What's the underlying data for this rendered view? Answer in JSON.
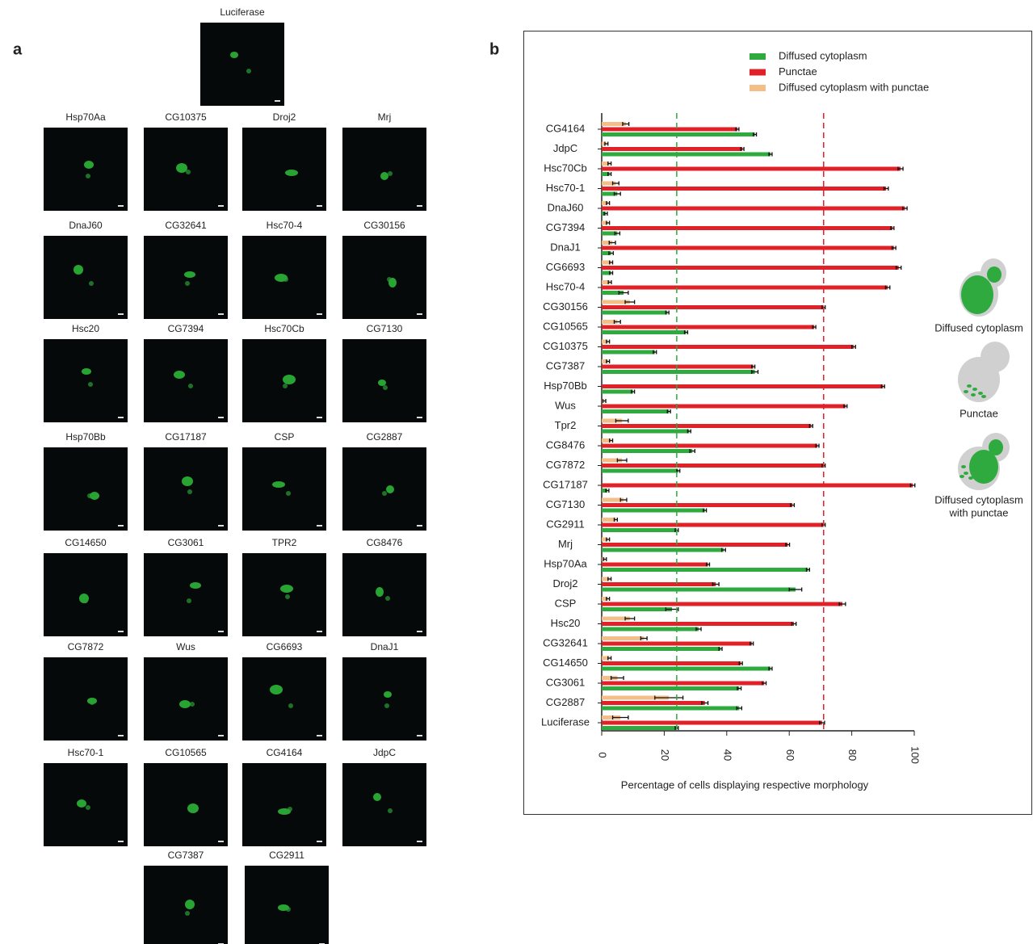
{
  "panel_a": {
    "label": "a",
    "images": [
      "Luciferase",
      "Hsp70Aa",
      "CG10375",
      "Droj2",
      "Mrj",
      "DnaJ60",
      "CG32641",
      "Hsc70-4",
      "CG30156",
      "Hsc20",
      "CG7394",
      "Hsc70Cb",
      "CG7130",
      "Hsp70Bb",
      "CG17187",
      "CSP",
      "CG2887",
      "CG14650",
      "CG3061",
      "TPR2",
      "CG8476",
      "CG7872",
      "Wus",
      "CG6693",
      "DnaJ1",
      "Hsc70-1",
      "CG10565",
      "CG4164",
      "JdpC",
      "CG7387",
      "CG2911"
    ]
  },
  "chart_data": {
    "type": "bar",
    "orientation": "horizontal",
    "label": "b",
    "categories": [
      "CG4164",
      "JdpC",
      "Hsc70Cb",
      "Hsc70-1",
      "DnaJ60",
      "CG7394",
      "DnaJ1",
      "CG6693",
      "Hsc70-4",
      "CG30156",
      "CG10565",
      "CG10375",
      "CG7387",
      "Hsp70Bb",
      "Wus",
      "Tpr2",
      "CG8476",
      "CG7872",
      "CG17187",
      "CG7130",
      "CG2911",
      "Mrj",
      "Hsp70Aa",
      "Droj2",
      "CSP",
      "Hsc20",
      "CG32641",
      "CG14650",
      "CG3061",
      "CG2887",
      "Luciferase"
    ],
    "series": [
      {
        "name": "Diffused cytoplasm with punctae",
        "color": "#f4be88",
        "values": [
          7.7,
          1.5,
          2.5,
          4.5,
          2,
          2,
          3.4,
          3,
          2.6,
          9,
          5,
          2,
          2,
          0,
          0.8,
          6.5,
          3,
          6.5,
          0,
          7,
          4.5,
          2,
          1,
          2.5,
          2,
          9,
          13.5,
          2.5,
          5,
          21.5,
          6
        ],
        "errors": [
          1,
          0.5,
          0.5,
          1,
          0.5,
          0.5,
          1,
          0.5,
          0.5,
          1.5,
          1,
          0.5,
          0.5,
          0,
          0.5,
          2,
          0.5,
          1.5,
          0,
          1,
          0.5,
          0.5,
          0.5,
          0.5,
          0.5,
          1.5,
          1,
          0.5,
          2,
          4.5,
          2.5
        ]
      },
      {
        "name": "Punctae",
        "color": "#e02127",
        "values": [
          43.4,
          45,
          95.6,
          91,
          97,
          93,
          93.5,
          95,
          91.5,
          71,
          68,
          80.6,
          48.5,
          90,
          78,
          67,
          69,
          71,
          99.5,
          61,
          71,
          59.5,
          34,
          36.5,
          77,
          61.5,
          48,
          44.5,
          52,
          33,
          70.5
        ],
        "errors": [
          0.5,
          0.5,
          0.8,
          0.7,
          0.7,
          0.5,
          0.6,
          0.8,
          0.7,
          0.5,
          0.5,
          0.6,
          0.5,
          0.5,
          0.5,
          0.5,
          0.5,
          0.5,
          0.7,
          0.6,
          0.5,
          0.6,
          0.5,
          1,
          1,
          0.7,
          0.5,
          0.5,
          0.6,
          1,
          0.8
        ]
      },
      {
        "name": "Diffused cytoplasm",
        "color": "#2eaa3e",
        "values": [
          49,
          54,
          2.5,
          5,
          1.3,
          5,
          3,
          3,
          7,
          21,
          27,
          17,
          49,
          10,
          21.5,
          28,
          29,
          24.5,
          1.8,
          33,
          24,
          39,
          66,
          62,
          22.5,
          31,
          38,
          54,
          44,
          44,
          24
        ],
        "errors": [
          0.5,
          0.5,
          0.5,
          1,
          0.5,
          0.8,
          0.7,
          0.5,
          1.5,
          0.5,
          0.5,
          0.5,
          1,
          0.5,
          0.5,
          0.5,
          0.8,
          0.5,
          0.5,
          0.5,
          0.5,
          0.6,
          0.5,
          2,
          2,
          0.8,
          0.5,
          0.5,
          0.6,
          0.8,
          0.5
        ]
      }
    ],
    "xlim": [
      0,
      100
    ],
    "xticks": [
      0,
      20,
      40,
      60,
      80,
      100
    ],
    "xlabel": "Percentage of cells displaying respective morphology",
    "reference_lines": [
      {
        "value": 24,
        "color": "#2eaa3e"
      },
      {
        "value": 71,
        "color": "#e02127"
      }
    ]
  },
  "schematic": {
    "labels": [
      [
        "Diffused cytoplasm"
      ],
      [
        "Punctae"
      ],
      [
        "Diffused cytoplasm",
        "with punctae"
      ]
    ]
  }
}
